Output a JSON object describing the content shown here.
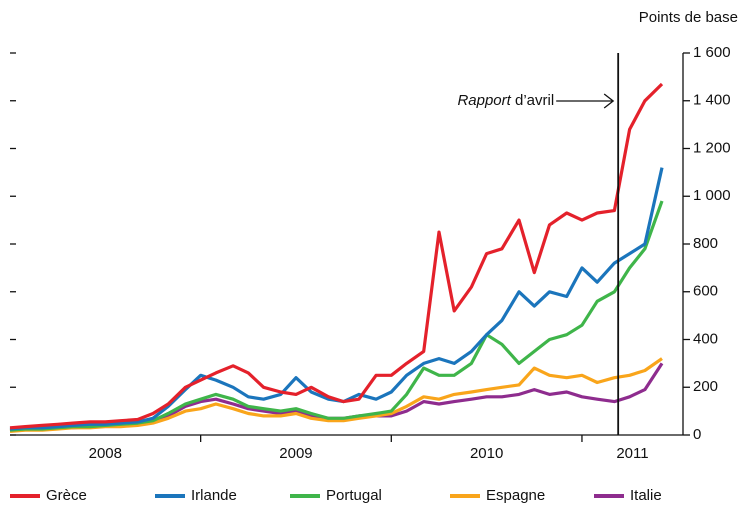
{
  "chart_data": {
    "type": "line",
    "y_axis_label": "Points de base",
    "x": [
      2008,
      2008.08,
      2008.17,
      2008.25,
      2008.33,
      2008.42,
      2008.5,
      2008.58,
      2008.67,
      2008.75,
      2008.83,
      2008.92,
      2009,
      2009.08,
      2009.17,
      2009.25,
      2009.33,
      2009.42,
      2009.5,
      2009.58,
      2009.67,
      2009.75,
      2009.83,
      2009.92,
      2010,
      2010.08,
      2010.17,
      2010.25,
      2010.33,
      2010.42,
      2010.5,
      2010.58,
      2010.67,
      2010.75,
      2010.83,
      2010.92,
      2011,
      2011.08,
      2011.17,
      2011.25,
      2011.33,
      2011.42
    ],
    "xlim": [
      2008,
      2011.53
    ],
    "xticks": [
      {
        "value": 2008,
        "label": "2008"
      },
      {
        "value": 2009,
        "label": "2009"
      },
      {
        "value": 2010,
        "label": "2010"
      },
      {
        "value": 2011,
        "label": "2011"
      }
    ],
    "ylim": [
      0,
      1600
    ],
    "yticks": [
      0,
      200,
      400,
      600,
      800,
      {
        "value": 1000,
        "label": "1 000"
      },
      {
        "value": 1200,
        "label": "1 200"
      },
      {
        "value": 1400,
        "label": "1 400"
      },
      {
        "value": 1600,
        "label": "1 600"
      }
    ],
    "annotation": {
      "label_italic": "Rapport",
      "label": " d’avril",
      "x": 2011.19
    },
    "series": [
      {
        "name": "Grèce",
        "color": "#e4212b",
        "values": [
          30,
          35,
          40,
          45,
          50,
          55,
          55,
          60,
          65,
          90,
          130,
          200,
          230,
          260,
          290,
          260,
          200,
          180,
          170,
          200,
          160,
          140,
          150,
          250,
          250,
          300,
          350,
          850,
          520,
          620,
          760,
          780,
          900,
          680,
          880,
          930,
          900,
          930,
          940,
          1280,
          1400,
          1470
        ]
      },
      {
        "name": "Irlande",
        "color": "#1b75bc",
        "values": [
          25,
          30,
          30,
          35,
          40,
          45,
          45,
          50,
          55,
          70,
          120,
          190,
          250,
          230,
          200,
          160,
          150,
          170,
          240,
          180,
          150,
          140,
          170,
          150,
          180,
          250,
          300,
          320,
          300,
          350,
          420,
          480,
          600,
          540,
          600,
          580,
          700,
          640,
          720,
          760,
          800,
          1120
        ]
      },
      {
        "name": "Portugal",
        "color": "#3fb54a",
        "values": [
          20,
          25,
          25,
          30,
          35,
          35,
          40,
          45,
          50,
          60,
          90,
          130,
          150,
          170,
          150,
          120,
          110,
          100,
          110,
          90,
          70,
          70,
          80,
          90,
          100,
          170,
          280,
          250,
          250,
          300,
          420,
          380,
          300,
          350,
          400,
          420,
          460,
          560,
          600,
          700,
          780,
          980
        ]
      },
      {
        "name": "Espagne",
        "color": "#f9a51b",
        "values": [
          15,
          20,
          20,
          25,
          30,
          30,
          35,
          35,
          40,
          50,
          70,
          100,
          110,
          130,
          110,
          90,
          80,
          80,
          90,
          70,
          60,
          60,
          70,
          80,
          90,
          120,
          160,
          150,
          170,
          180,
          190,
          200,
          210,
          280,
          250,
          240,
          250,
          220,
          240,
          250,
          270,
          320
        ]
      },
      {
        "name": "Italie",
        "color": "#8e2c8e",
        "values": [
          20,
          25,
          25,
          30,
          30,
          35,
          40,
          40,
          45,
          55,
          80,
          120,
          140,
          150,
          130,
          110,
          100,
          90,
          100,
          80,
          70,
          70,
          80,
          80,
          80,
          100,
          140,
          130,
          140,
          150,
          160,
          160,
          170,
          190,
          170,
          180,
          160,
          150,
          140,
          160,
          190,
          300
        ]
      }
    ]
  }
}
